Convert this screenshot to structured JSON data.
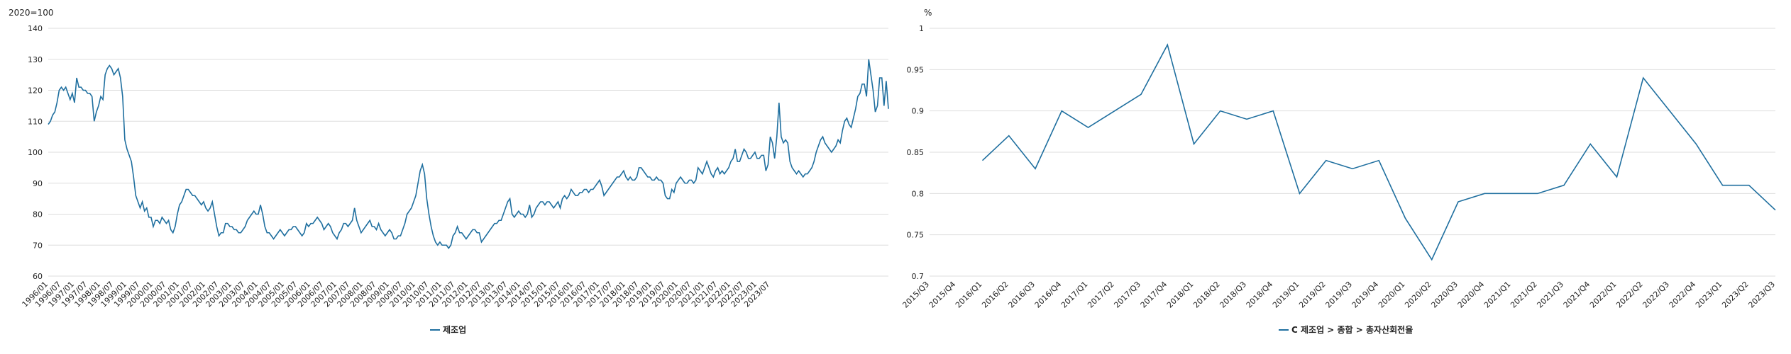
{
  "colors": {
    "series": "#1f6f9f",
    "grid": "#dddddd"
  },
  "chart_data": [
    {
      "type": "line",
      "title": "",
      "unit_label": "2020=100",
      "ylim": [
        60,
        140
      ],
      "yticks": [
        "60",
        "70",
        "80",
        "90",
        "100",
        "110",
        "120",
        "130",
        "140"
      ],
      "grid": true,
      "legend_position": "bottom-center",
      "x_start_month": "1996/01",
      "x_labels": [
        "1996/01",
        "1996/07",
        "1997/01",
        "1997/07",
        "1998/01",
        "1998/07",
        "1999/01",
        "1999/07",
        "2000/01",
        "2000/07",
        "2001/01",
        "2001/07",
        "2002/01",
        "2002/07",
        "2003/01",
        "2003/07",
        "2004/01",
        "2004/07",
        "2005/01",
        "2005/07",
        "2006/01",
        "2006/07",
        "2007/01",
        "2007/07",
        "2008/01",
        "2008/07",
        "2009/01",
        "2009/07",
        "2010/01",
        "2010/07",
        "2011/01",
        "2011/07",
        "2012/01",
        "2012/07",
        "2013/01",
        "2013/07",
        "2014/01",
        "2014/07",
        "2015/01",
        "2015/07",
        "2016/01",
        "2016/07",
        "2017/01",
        "2017/07",
        "2018/01",
        "2018/07",
        "2019/01",
        "2019/07",
        "2020/01",
        "2020/07",
        "2021/01",
        "2021/07",
        "2022/01",
        "2022/07",
        "2023/01",
        "2023/07"
      ],
      "series": [
        {
          "name": "제조업",
          "values": [
            109,
            110,
            112,
            113,
            116,
            120,
            121,
            120,
            121,
            119,
            117,
            119,
            116,
            124,
            121,
            121,
            120,
            120,
            119,
            119,
            118,
            110,
            113,
            115,
            118,
            117,
            125,
            127,
            128,
            127,
            125,
            126,
            127,
            124,
            118,
            104,
            101,
            99,
            97,
            92,
            86,
            84,
            82,
            84,
            81,
            82,
            79,
            79,
            76,
            78,
            78,
            77,
            79,
            78,
            77,
            78,
            75,
            74,
            76,
            80,
            83,
            84,
            86,
            88,
            88,
            87,
            86,
            86,
            85,
            84,
            83,
            84,
            82,
            81,
            82,
            84,
            80,
            76,
            73,
            74,
            74,
            77,
            77,
            76,
            76,
            75,
            75,
            74,
            74,
            75,
            76,
            78,
            79,
            80,
            81,
            80,
            80,
            83,
            80,
            76,
            74,
            74,
            73,
            72,
            73,
            74,
            75,
            74,
            73,
            74,
            75,
            75,
            76,
            76,
            75,
            74,
            73,
            74,
            77,
            76,
            77,
            77,
            78,
            79,
            78,
            77,
            75,
            76,
            77,
            76,
            74,
            73,
            72,
            74,
            75,
            77,
            77,
            76,
            77,
            78,
            82,
            78,
            76,
            74,
            75,
            76,
            77,
            78,
            76,
            76,
            75,
            77,
            75,
            74,
            73,
            74,
            75,
            74,
            72,
            72,
            73,
            73,
            75,
            77,
            80,
            81,
            82,
            84,
            86,
            90,
            94,
            96,
            93,
            85,
            80,
            76,
            73,
            71,
            70,
            71,
            70,
            70,
            70,
            69,
            70,
            73,
            74,
            76,
            74,
            74,
            73,
            72,
            73,
            74,
            75,
            75,
            74,
            74,
            71,
            72,
            73,
            74,
            75,
            76,
            77,
            77,
            78,
            78,
            80,
            82,
            84,
            85,
            80,
            79,
            80,
            81,
            80,
            80,
            79,
            80,
            83,
            79,
            80,
            82,
            83,
            84,
            84,
            83,
            84,
            84,
            83,
            82,
            83,
            84,
            82,
            85,
            86,
            85,
            86,
            88,
            87,
            86,
            86,
            87,
            87,
            88,
            88,
            87,
            88,
            88,
            89,
            90,
            91,
            89,
            86,
            87,
            88,
            89,
            90,
            91,
            92,
            92,
            93,
            94,
            92,
            91,
            92,
            91,
            91,
            92,
            95,
            95,
            94,
            93,
            92,
            92,
            91,
            91,
            92,
            91,
            91,
            90,
            86,
            85,
            85,
            88,
            87,
            90,
            91,
            92,
            91,
            90,
            90,
            91,
            91,
            90,
            91,
            95,
            94,
            93,
            95,
            97,
            95,
            93,
            92,
            94,
            95,
            93,
            94,
            93,
            94,
            95,
            97,
            98,
            101,
            97,
            97,
            99,
            101,
            100,
            98,
            98,
            99,
            100,
            98,
            98,
            99,
            99,
            94,
            96,
            105,
            103,
            98,
            105,
            116,
            105,
            103,
            104,
            103,
            97,
            95,
            94,
            93,
            94,
            93,
            92,
            93,
            93,
            94,
            95,
            97,
            100,
            102,
            104,
            105,
            103,
            102,
            101,
            100,
            101,
            102,
            104,
            103,
            107,
            110,
            111,
            109,
            108,
            111,
            114,
            118,
            119,
            122,
            122,
            118,
            130,
            125,
            120,
            113,
            115,
            124,
            124,
            115,
            123,
            114
          ]
        }
      ]
    },
    {
      "type": "line",
      "title": "",
      "unit_label": "%",
      "ylim": [
        0.7,
        1
      ],
      "yticks": [
        "0.7",
        "0.75",
        "0.8",
        "0.85",
        "0.9",
        "0.95",
        "1"
      ],
      "grid": true,
      "legend_position": "bottom-center",
      "categories": [
        "2015/Q3",
        "2015/Q4",
        "2016/Q1",
        "2016/Q2",
        "2016/Q3",
        "2016/Q4",
        "2017/Q1",
        "2017/Q2",
        "2017/Q3",
        "2017/Q4",
        "2018/Q1",
        "2018/Q2",
        "2018/Q3",
        "2018/Q4",
        "2019/Q1",
        "2019/Q2",
        "2019/Q3",
        "2019/Q4",
        "2020/Q1",
        "2020/Q2",
        "2020/Q3",
        "2020/Q4",
        "2021/Q1",
        "2021/Q2",
        "2021/Q3",
        "2021/Q4",
        "2022/Q1",
        "2022/Q2",
        "2022/Q3",
        "2022/Q4",
        "2023/Q1",
        "2023/Q2",
        "2023/Q3"
      ],
      "series": [
        {
          "name": "C 제조업 > 종합 > 총자산회전율",
          "values": [
            null,
            null,
            0.84,
            0.87,
            0.83,
            0.9,
            0.88,
            0.9,
            0.92,
            0.98,
            0.86,
            0.9,
            0.89,
            0.9,
            0.8,
            0.84,
            0.83,
            0.84,
            0.77,
            0.72,
            0.79,
            0.8,
            0.8,
            0.8,
            0.81,
            0.86,
            0.82,
            0.94,
            0.9,
            0.86,
            0.81,
            0.81,
            0.78
          ]
        }
      ]
    }
  ]
}
